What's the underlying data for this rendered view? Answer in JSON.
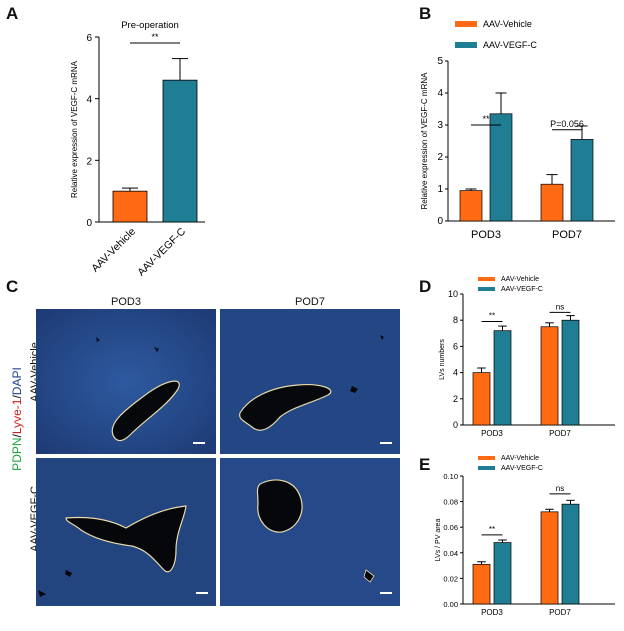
{
  "panels": {
    "A": {
      "letter": "A",
      "title": "Pre-operation",
      "ylabel": "Relative expression of VEGF-C mRNA",
      "yticks": [
        "0",
        "2",
        "4",
        "6"
      ],
      "sig": "**"
    },
    "B": {
      "letter": "B",
      "ylabel": "Relative expression of VEGF-C mRNA",
      "yticks": [
        "0",
        "1",
        "2",
        "3",
        "4",
        "5"
      ],
      "legend": [
        "AAV-Vehicle",
        "AAV-VEGF-C"
      ],
      "sig_pod3": "**",
      "sig_pod7": "P=0.056"
    },
    "C": {
      "letter": "C",
      "cols": [
        "POD3",
        "POD7"
      ],
      "rows": [
        "AAV-Vehicle",
        "AAV-VEGF-C"
      ],
      "stain_green": "PDPN",
      "stain_red": "Lyve-1",
      "stain_blue": "DAPI",
      "sep": "/"
    },
    "D": {
      "letter": "D",
      "ylabel": "LVs numbers",
      "yticks": [
        "0",
        "2",
        "4",
        "6",
        "8",
        "10"
      ],
      "legend": [
        "AAV-Vehicle",
        "AAV-VEGF-C"
      ],
      "sig_pod3": "**",
      "sig_pod7": "ns"
    },
    "E": {
      "letter": "E",
      "ylabel": "LVs / PV area",
      "yticks": [
        "0.00",
        "0.02",
        "0.04",
        "0.06",
        "0.08",
        "0.10"
      ],
      "legend": [
        "AAV-Vehicle",
        "AAV-VEGF-C"
      ],
      "sig_pod3": "**",
      "sig_pod7": "ns"
    }
  },
  "colors": {
    "vehicle": "#ff6a13",
    "vegfc": "#1f7e93",
    "green": "#1aa33a",
    "red": "#d0231e",
    "blue": "#1f3f9a"
  },
  "chart_data": [
    {
      "id": "A",
      "type": "bar",
      "title": "Pre-operation",
      "categories": [
        "AAV-Vehicle",
        "AAV-VEGF-C"
      ],
      "values": [
        1.0,
        4.6
      ],
      "errors": [
        0.1,
        0.7
      ],
      "ylabel": "Relative expression of VEGF-C mRNA",
      "ylim": [
        0,
        6
      ]
    },
    {
      "id": "B",
      "type": "bar",
      "categories": [
        "POD3",
        "POD7"
      ],
      "series": [
        {
          "name": "AAV-Vehicle",
          "values": [
            0.95,
            1.15
          ],
          "errors": [
            0.05,
            0.3
          ]
        },
        {
          "name": "AAV-VEGF-C",
          "values": [
            3.35,
            2.55
          ],
          "errors": [
            0.65,
            0.42
          ]
        }
      ],
      "ylabel": "Relative expression of VEGF-C mRNA",
      "ylim": [
        0,
        5
      ]
    },
    {
      "id": "D",
      "type": "bar",
      "categories": [
        "POD3",
        "POD7"
      ],
      "series": [
        {
          "name": "AAV-Vehicle",
          "values": [
            4.0,
            7.5
          ],
          "errors": [
            0.35,
            0.3
          ]
        },
        {
          "name": "AAV-VEGF-C",
          "values": [
            7.2,
            8.0
          ],
          "errors": [
            0.35,
            0.35
          ]
        }
      ],
      "ylabel": "LVs numbers",
      "ylim": [
        0,
        10
      ]
    },
    {
      "id": "E",
      "type": "bar",
      "categories": [
        "POD3",
        "POD7"
      ],
      "series": [
        {
          "name": "AAV-Vehicle",
          "values": [
            0.031,
            0.072
          ],
          "errors": [
            0.002,
            0.002
          ]
        },
        {
          "name": "AAV-VEGF-C",
          "values": [
            0.048,
            0.078
          ],
          "errors": [
            0.002,
            0.003
          ]
        }
      ],
      "ylabel": "LVs / PV area",
      "ylim": [
        0,
        0.1
      ]
    }
  ]
}
